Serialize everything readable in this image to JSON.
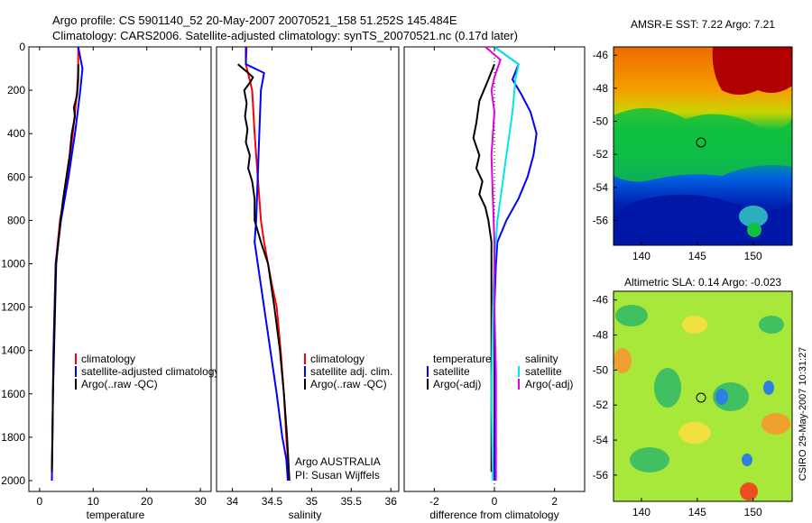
{
  "title_line1": "Argo profile: CS 5901140_52 20-May-2007 20070521_158 51.252S 145.484E",
  "title_line2": "Climatology: CARS2006. Satellite-adjusted climatology: synTS_20070521.nc (0.17d later)",
  "credit": "CSIRO 29-May-2007 10:31:27",
  "colors": {
    "clim": "#ff0000",
    "sat": "#0000ff",
    "argo": "#000000",
    "sat_diff": "#00e5e5",
    "argo_diff": "#e000e0"
  },
  "chart_data": [
    {
      "type": "line",
      "xlabel": "temperature",
      "xticks": [
        "0",
        "10",
        "20",
        "30"
      ],
      "xlim": [
        -2,
        32
      ],
      "ylim": [
        0,
        2050
      ],
      "yticks": [
        "0",
        "200",
        "400",
        "600",
        "800",
        "1000",
        "1200",
        "1400",
        "1600",
        "1800",
        "2000"
      ],
      "yinverted": true,
      "legend": [
        "climatology",
        "satellite-adjusted climatology",
        "Argo(..raw -QC)"
      ],
      "series": [
        {
          "name": "climatology",
          "color": "clim",
          "x": [
            7.2,
            7.2,
            7.0,
            6.6,
            6.2,
            5.7,
            5.1,
            4.5,
            3.8,
            3.4,
            3.0,
            2.8,
            2.6,
            2.5,
            2.4,
            2.3
          ],
          "y": [
            0,
            100,
            200,
            300,
            400,
            500,
            600,
            700,
            800,
            900,
            1000,
            1200,
            1400,
            1600,
            1800,
            1960
          ]
        },
        {
          "name": "satellite-adjusted climatology",
          "color": "sat",
          "x": [
            7.2,
            8.0,
            7.6,
            7.1,
            6.6,
            6.0,
            5.4,
            4.7,
            4.0,
            3.5,
            3.0,
            2.8,
            2.6,
            2.5,
            2.4,
            2.3
          ],
          "y": [
            0,
            100,
            200,
            300,
            400,
            500,
            600,
            700,
            800,
            900,
            1000,
            1200,
            1400,
            1600,
            1800,
            2000
          ]
        },
        {
          "name": "Argo(..raw -QC)",
          "color": "argo",
          "x": [
            7.2,
            7.2,
            7.0,
            6.4,
            6.6,
            6.0,
            5.6,
            5.0,
            4.4,
            3.9,
            3.5,
            3.1,
            2.9,
            2.7,
            2.5,
            2.4,
            2.3
          ],
          "y": [
            80,
            150,
            220,
            280,
            320,
            400,
            500,
            600,
            700,
            800,
            900,
            1000,
            1200,
            1400,
            1600,
            1800,
            1960
          ]
        }
      ]
    },
    {
      "type": "line",
      "xlabel": "salinity",
      "xticks": [
        "34",
        "34.5",
        "35",
        "35.5",
        "36"
      ],
      "xlim": [
        33.8,
        36.1
      ],
      "ylim": [
        0,
        2050
      ],
      "yinverted": true,
      "legend": [
        "climatology",
        "satellite adj. clim.",
        "Argo(..raw -QC)"
      ],
      "annotation": [
        "Argo AUSTRALIA",
        "PI: Susan Wijffels"
      ],
      "series": [
        {
          "name": "climatology",
          "color": "clim",
          "x": [
            34.18,
            34.17,
            34.25,
            34.28,
            34.32,
            34.36,
            34.4,
            34.45,
            34.5,
            34.56,
            34.61,
            34.65,
            34.68,
            34.7,
            34.71
          ],
          "y": [
            0,
            80,
            200,
            400,
            600,
            800,
            900,
            1000,
            1100,
            1200,
            1400,
            1600,
            1800,
            1900,
            2000
          ]
        },
        {
          "name": "satellite adj. clim.",
          "color": "sat",
          "x": [
            34.17,
            34.17,
            34.4,
            34.36,
            34.34,
            34.32,
            34.3,
            34.28,
            34.32,
            34.4,
            34.48,
            34.56,
            34.63,
            34.68,
            34.7
          ],
          "y": [
            0,
            80,
            120,
            200,
            400,
            600,
            800,
            900,
            1000,
            1200,
            1400,
            1600,
            1800,
            1900,
            2000
          ]
        },
        {
          "name": "Argo(..raw -QC)",
          "color": "argo",
          "x": [
            34.07,
            34.2,
            34.26,
            34.23,
            34.15,
            34.18,
            34.16,
            34.19,
            34.17,
            34.22,
            34.2,
            34.25,
            34.28,
            34.28,
            34.36,
            34.45,
            34.53,
            34.6,
            34.65,
            34.69,
            34.72
          ],
          "y": [
            80,
            120,
            140,
            160,
            200,
            260,
            320,
            380,
            440,
            500,
            560,
            620,
            700,
            800,
            900,
            1000,
            1200,
            1400,
            1600,
            1800,
            2000
          ]
        }
      ]
    },
    {
      "type": "line",
      "xlabel": "difference from climatology",
      "xticks": [
        "-2",
        "0",
        "2"
      ],
      "xlim": [
        -3,
        3
      ],
      "ylim": [
        0,
        2050
      ],
      "yinverted": true,
      "legend_left_title": "temperature",
      "legend_right_title": "salinity",
      "legend": [
        "satellite",
        "Argo(-adj)",
        "satellite",
        "Argo(-adj)"
      ],
      "series": [
        {
          "name": "temperature satellite",
          "color": "sat",
          "x": [
            0.0,
            0.8,
            0.6,
            0.9,
            1.2,
            1.4,
            1.3,
            1.1,
            0.8,
            0.4,
            0.1,
            0.05,
            0.0,
            0.0,
            0.0
          ],
          "y": [
            0,
            80,
            150,
            220,
            300,
            400,
            500,
            600,
            700,
            800,
            900,
            1000,
            1200,
            1600,
            2000
          ]
        },
        {
          "name": "temperature Argo(-adj)",
          "color": "argo",
          "x": [
            0.0,
            -0.2,
            -0.5,
            -0.6,
            -0.7,
            -0.5,
            -0.6,
            -0.4,
            -0.5,
            -0.3,
            -0.2,
            -0.1,
            -0.1,
            -0.1,
            -0.1
          ],
          "y": [
            80,
            150,
            250,
            350,
            420,
            500,
            560,
            620,
            680,
            740,
            800,
            900,
            1100,
            1500,
            1960
          ]
        },
        {
          "name": "salinity satellite",
          "color": "sat_diff",
          "x": [
            0.0,
            0.8,
            0.7,
            0.6,
            0.5,
            0.4,
            0.3,
            0.2,
            0.1,
            0.05,
            0.0,
            -0.05,
            -0.1,
            -0.05
          ],
          "y": [
            0,
            80,
            150,
            300,
            400,
            500,
            600,
            700,
            800,
            900,
            1000,
            1200,
            1600,
            2000
          ]
        },
        {
          "name": "salinity Argo(-adj)",
          "color": "argo_diff",
          "x": [
            -0.3,
            0.2,
            0.0,
            -0.1,
            0.0,
            -0.1,
            -0.05,
            0.0,
            0.0,
            0.05,
            0.05,
            0.05
          ],
          "y": [
            0,
            60,
            140,
            200,
            300,
            500,
            700,
            900,
            1200,
            1500,
            1800,
            2000
          ]
        }
      ]
    },
    {
      "type": "heatmap",
      "title": "AMSR-E SST: 7.22 Argo: 7.21",
      "xticks": [
        "140",
        "145",
        "150"
      ],
      "yticks": [
        "-46",
        "-48",
        "-50",
        "-52",
        "-54",
        "-56"
      ],
      "xlim": [
        137.5,
        153.5
      ],
      "ylim": [
        -57.5,
        -45.5
      ]
    },
    {
      "type": "heatmap",
      "title": "Altimetric SLA: 0.14  Argo: -0.023",
      "xticks": [
        "140",
        "145",
        "150"
      ],
      "yticks": [
        "-46",
        "-48",
        "-50",
        "-52",
        "-54",
        "-56"
      ],
      "xlim": [
        137.5,
        153.5
      ],
      "ylim": [
        -57.5,
        -45.5
      ]
    }
  ]
}
